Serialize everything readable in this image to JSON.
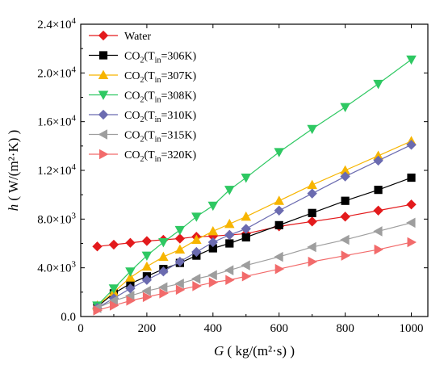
{
  "chart_data": {
    "type": "line",
    "title": "",
    "xlabel": {
      "var": "G",
      "unit": "( kg/(m²·s) )"
    },
    "ylabel": {
      "var": "h",
      "unit": "( W/(m²·K) )"
    },
    "xlim": [
      0,
      1050
    ],
    "ylim": [
      0,
      24000
    ],
    "x_ticks": [
      0,
      200,
      400,
      600,
      800,
      1000
    ],
    "x_tick_labels": [
      "0",
      "200",
      "400",
      "600",
      "800",
      "1000"
    ],
    "y_ticks": [
      0,
      4000,
      8000,
      12000,
      16000,
      20000,
      24000
    ],
    "y_tick_labels": [
      {
        "mant": "0.0",
        "exp": ""
      },
      {
        "mant": "4.0×10",
        "exp": "3"
      },
      {
        "mant": "8.0×10",
        "exp": "3"
      },
      {
        "mant": "1.2×10",
        "exp": "4"
      },
      {
        "mant": "1.6×10",
        "exp": "4"
      },
      {
        "mant": "2.0×10",
        "exp": "4"
      },
      {
        "mant": "2.4×10",
        "exp": "4"
      }
    ],
    "grid": false,
    "legend_position": "top-left",
    "series": [
      {
        "name": "Water",
        "label_prefix": "Water",
        "label_sub": "",
        "label_mid": "",
        "label_suffix": "",
        "color": "#e31a1c",
        "marker": "diamond",
        "x": [
          50,
          100,
          150,
          200,
          250,
          300,
          350,
          400,
          450,
          500,
          600,
          700,
          800,
          900,
          1000
        ],
        "y": [
          5750,
          5900,
          6050,
          6200,
          6300,
          6400,
          6550,
          6600,
          6700,
          6800,
          7400,
          7800,
          8200,
          8700,
          9200
        ]
      },
      {
        "name": "CO2(Tin=306K)",
        "label_prefix": "CO",
        "label_sub": "2",
        "label_mid": "(T",
        "label_sub2": "in",
        "label_suffix": "=306K)",
        "color": "#000000",
        "marker": "square",
        "x": [
          50,
          100,
          150,
          200,
          250,
          300,
          350,
          400,
          450,
          500,
          600,
          700,
          800,
          900,
          1000
        ],
        "y": [
          800,
          1900,
          2700,
          3300,
          3900,
          4400,
          5000,
          5600,
          6000,
          6500,
          7500,
          8500,
          9500,
          10400,
          11400
        ]
      },
      {
        "name": "CO2(Tin=307K)",
        "label_prefix": "CO",
        "label_sub": "2",
        "label_mid": "(T",
        "label_sub2": "in",
        "label_suffix": "=307K)",
        "color": "#f7b500",
        "marker": "triangle-up",
        "x": [
          50,
          100,
          150,
          200,
          250,
          300,
          350,
          400,
          450,
          500,
          600,
          700,
          800,
          900,
          1000
        ],
        "y": [
          900,
          2000,
          3200,
          4100,
          4900,
          5500,
          6300,
          7000,
          7600,
          8200,
          9500,
          10800,
          12000,
          13200,
          14400
        ]
      },
      {
        "name": "CO2(Tin=308K)",
        "label_prefix": "CO",
        "label_sub": "2",
        "label_mid": "(T",
        "label_sub2": "in",
        "label_suffix": "=308K)",
        "color": "#2ec862",
        "marker": "triangle-down",
        "x": [
          50,
          100,
          150,
          200,
          250,
          300,
          350,
          400,
          450,
          500,
          600,
          700,
          800,
          900,
          1000
        ],
        "y": [
          900,
          2300,
          3700,
          5000,
          6100,
          7100,
          8200,
          9100,
          10400,
          11400,
          13500,
          15400,
          17200,
          19100,
          21100
        ]
      },
      {
        "name": "CO2(Tin=310K)",
        "label_prefix": "CO",
        "label_sub": "2",
        "label_mid": "(T",
        "label_sub2": "in",
        "label_suffix": "=310K)",
        "color": "#6b6bb0",
        "marker": "diamond",
        "x": [
          50,
          100,
          150,
          200,
          250,
          300,
          350,
          400,
          450,
          500,
          600,
          700,
          800,
          900,
          1000
        ],
        "y": [
          700,
          1500,
          2300,
          3000,
          3700,
          4500,
          5300,
          6100,
          6700,
          7200,
          8700,
          10100,
          11500,
          12800,
          14100
        ]
      },
      {
        "name": "CO2(Tin=315K)",
        "label_prefix": "CO",
        "label_sub": "2",
        "label_mid": "(T",
        "label_sub2": "in",
        "label_suffix": "=315K)",
        "color": "#9e9e9e",
        "marker": "triangle-left",
        "x": [
          50,
          100,
          150,
          200,
          250,
          300,
          350,
          400,
          450,
          500,
          600,
          700,
          800,
          900,
          1000
        ],
        "y": [
          700,
          1300,
          1700,
          2100,
          2400,
          2700,
          3100,
          3400,
          3800,
          4200,
          4900,
          5700,
          6300,
          7000,
          7700
        ]
      },
      {
        "name": "CO2(Tin=320K)",
        "label_prefix": "CO",
        "label_sub": "2",
        "label_mid": "(T",
        "label_sub2": "in",
        "label_suffix": "=320K)",
        "color": "#f26b6b",
        "marker": "triangle-right",
        "x": [
          50,
          100,
          150,
          200,
          250,
          300,
          350,
          400,
          450,
          500,
          600,
          700,
          800,
          900,
          1000
        ],
        "y": [
          500,
          900,
          1300,
          1600,
          1900,
          2200,
          2500,
          2800,
          3000,
          3300,
          3900,
          4500,
          5000,
          5500,
          6100
        ]
      }
    ]
  }
}
